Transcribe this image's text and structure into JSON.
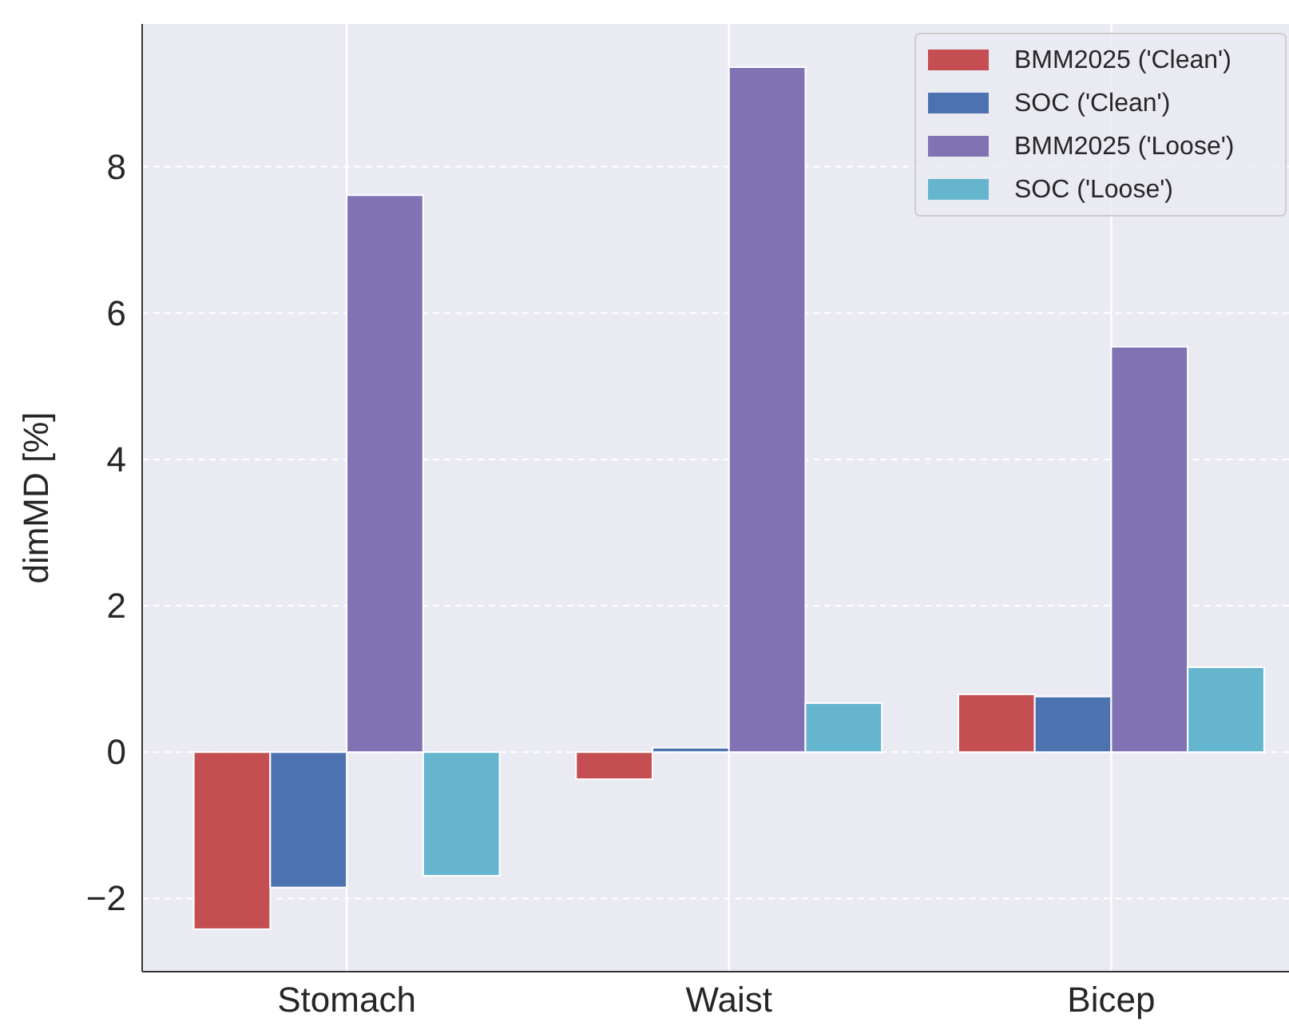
{
  "chart_data": {
    "type": "bar",
    "ylabel": "dimMD [%]",
    "categories": [
      "Stomach",
      "Waist",
      "Bicep"
    ],
    "series": [
      {
        "name": "BMM2025 ('Clean')",
        "color": "#c44e52",
        "values": [
          -2.42,
          -0.37,
          0.79
        ]
      },
      {
        "name": "SOC ('Clean')",
        "color": "#4c72b0",
        "values": [
          -1.85,
          0.06,
          0.76
        ]
      },
      {
        "name": "BMM2025 ('Loose')",
        "color": "#8172b3",
        "values": [
          7.61,
          9.36,
          5.54
        ]
      },
      {
        "name": "SOC ('Loose')",
        "color": "#64b5cd",
        "values": [
          -1.69,
          0.67,
          1.16
        ]
      }
    ],
    "ylim": [
      -3,
      9.95
    ],
    "yticks": [
      {
        "value": -2,
        "label": "−2"
      },
      0,
      2,
      4,
      6,
      8
    ],
    "grid": true,
    "legend": "top right"
  }
}
